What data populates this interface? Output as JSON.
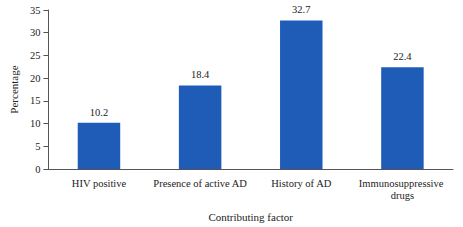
{
  "chart_data": {
    "type": "bar",
    "x_label": "Contributing factor",
    "y_label": "Percentage",
    "categories": [
      "HIV positive",
      "Presence of active AD",
      "History of AD",
      "Immunosuppressive drugs"
    ],
    "values": [
      10.2,
      18.4,
      32.7,
      22.4
    ],
    "color": "#1f5cb8",
    "ylim": [
      0,
      35
    ],
    "yticks": [
      0,
      5,
      10,
      15,
      20,
      25,
      30,
      35
    ],
    "grid": false,
    "data_labels": true
  }
}
